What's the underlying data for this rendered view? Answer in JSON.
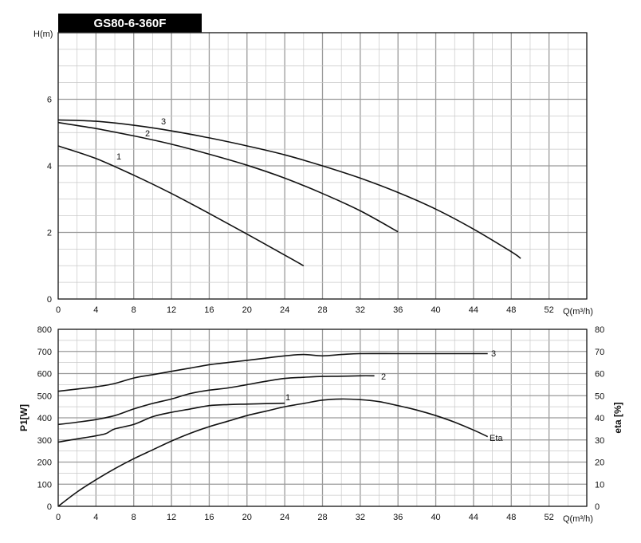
{
  "chart_data": [
    {
      "type": "line",
      "title": "GS80-6-360F",
      "xlabel": "Q(m³/h)",
      "ylabel": "H(m)",
      "xlim": [
        0,
        56
      ],
      "ylim": [
        0,
        8
      ],
      "x_ticks": [
        "0",
        "4",
        "8",
        "12",
        "16",
        "20",
        "24",
        "28",
        "32",
        "36",
        "40",
        "44",
        "48",
        "52"
      ],
      "y_ticks": [
        "0",
        "2",
        "4",
        "6"
      ],
      "grid": true,
      "series": [
        {
          "name": "1",
          "x": [
            0,
            4,
            8,
            12,
            16,
            20,
            24,
            26
          ],
          "y": [
            4.6,
            4.22,
            3.72,
            3.17,
            2.57,
            1.95,
            1.32,
            1.0
          ]
        },
        {
          "name": "2",
          "x": [
            0,
            4,
            8,
            12,
            16,
            20,
            24,
            28,
            32,
            36
          ],
          "y": [
            5.3,
            5.12,
            4.9,
            4.65,
            4.35,
            4.02,
            3.63,
            3.17,
            2.65,
            2.02
          ]
        },
        {
          "name": "3",
          "x": [
            0,
            4,
            8,
            12,
            16,
            20,
            24,
            28,
            32,
            36,
            40,
            44,
            48,
            49
          ],
          "y": [
            5.38,
            5.34,
            5.22,
            5.05,
            4.84,
            4.6,
            4.33,
            4.0,
            3.63,
            3.2,
            2.7,
            2.1,
            1.42,
            1.22
          ]
        }
      ]
    },
    {
      "type": "line",
      "xlabel": "Q(m³/h)",
      "ylabel": "P1[W]",
      "ylabel_right": "eta [%]",
      "xlim": [
        0,
        56
      ],
      "ylim": [
        0,
        800
      ],
      "ylim_right": [
        0,
        80
      ],
      "x_ticks": [
        "0",
        "4",
        "8",
        "12",
        "16",
        "20",
        "24",
        "28",
        "32",
        "36",
        "40",
        "44",
        "48",
        "52"
      ],
      "y_ticks": [
        "0",
        "100",
        "200",
        "300",
        "400",
        "500",
        "600",
        "700",
        "800"
      ],
      "y_ticks_right": [
        "0",
        "10",
        "20",
        "30",
        "40",
        "50",
        "60",
        "70",
        "80"
      ],
      "grid": true,
      "series": [
        {
          "name": "1",
          "x": [
            0,
            2,
            3.5,
            5,
            6,
            8,
            10,
            12,
            14,
            16,
            18,
            20,
            22,
            24
          ],
          "y": [
            290,
            305,
            315,
            328,
            350,
            370,
            405,
            425,
            440,
            455,
            460,
            462,
            464,
            466
          ]
        },
        {
          "name": "2",
          "x": [
            0,
            2,
            4,
            6,
            8,
            10,
            12,
            14,
            16,
            18,
            20,
            22,
            24,
            26,
            28,
            30,
            32,
            33.5
          ],
          "y": [
            370,
            380,
            392,
            410,
            440,
            465,
            485,
            510,
            525,
            535,
            550,
            565,
            578,
            583,
            587,
            588,
            590,
            590
          ]
        },
        {
          "name": "3",
          "x": [
            0,
            2,
            4,
            6,
            8,
            10,
            12,
            14,
            16,
            18,
            20,
            22,
            24,
            26,
            28,
            30,
            32,
            36,
            40,
            44,
            45.5
          ],
          "y": [
            520,
            530,
            540,
            555,
            580,
            595,
            610,
            625,
            640,
            650,
            660,
            670,
            680,
            686,
            680,
            686,
            690,
            690,
            690,
            690,
            690
          ]
        },
        {
          "name": "Eta",
          "axis": "right",
          "x": [
            0,
            2,
            4,
            6,
            8,
            10,
            12,
            14,
            16,
            18,
            20,
            22,
            24,
            26,
            28,
            30,
            32,
            34,
            36,
            38,
            40,
            42,
            44,
            45.5
          ],
          "y": [
            0,
            6.5,
            12,
            17,
            21.5,
            25.5,
            29.5,
            33,
            36,
            38.5,
            41,
            43,
            45,
            46.5,
            48,
            48.5,
            48.2,
            47.3,
            45.5,
            43.5,
            41,
            38,
            34.5,
            31.5
          ]
        }
      ]
    }
  ]
}
